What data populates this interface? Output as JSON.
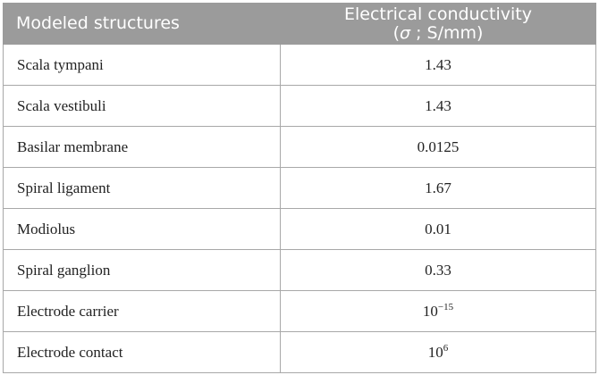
{
  "table": {
    "header": {
      "col0": "Modeled structures",
      "col1": {
        "line1": "Electrical conductivity",
        "line2": [
          "(",
          "σ",
          " ; S/mm)"
        ]
      }
    },
    "rows": [
      [
        "Scala tympani",
        "1.43"
      ],
      [
        "Scala vestibuli",
        "1.43"
      ],
      [
        "Basilar membrane",
        "0.0125"
      ],
      [
        "Spiral ligament",
        "1.67"
      ],
      [
        "Modiolus",
        "0.01"
      ],
      [
        "Spiral ganglion",
        "0.33"
      ],
      [
        "Electrode carrier",
        {
          "base": "10",
          "exponent": "−15"
        }
      ],
      [
        "Electrode contact",
        {
          "base": "10",
          "exponent": "6"
        }
      ]
    ]
  }
}
